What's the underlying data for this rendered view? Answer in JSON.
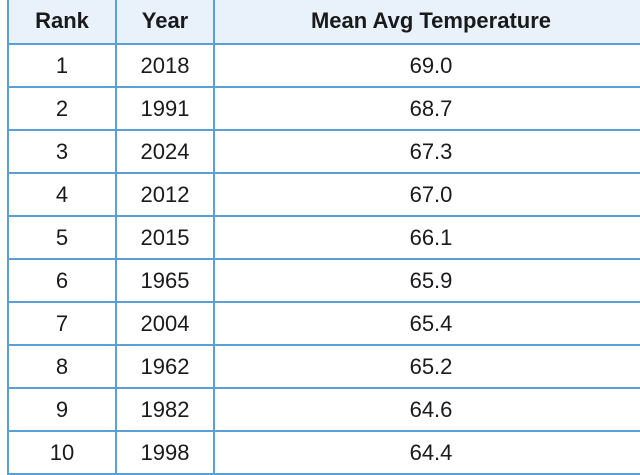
{
  "table": {
    "columns": [
      "Rank",
      "Year",
      "Mean Avg Temperature"
    ],
    "rows": [
      [
        "1",
        "2018",
        "69.0"
      ],
      [
        "2",
        "1991",
        "68.7"
      ],
      [
        "3",
        "2024",
        "67.3"
      ],
      [
        "4",
        "2012",
        "67.0"
      ],
      [
        "5",
        "2015",
        "66.1"
      ],
      [
        "6",
        "1965",
        "65.9"
      ],
      [
        "7",
        "2004",
        "65.4"
      ],
      [
        "8",
        "1962",
        "65.2"
      ],
      [
        "9",
        "1982",
        "64.6"
      ],
      [
        "10",
        "1998",
        "64.4"
      ]
    ]
  },
  "colors": {
    "border": "#5aa0d6",
    "header_background": "#e9f1fb",
    "text": "#1a1a1a"
  }
}
